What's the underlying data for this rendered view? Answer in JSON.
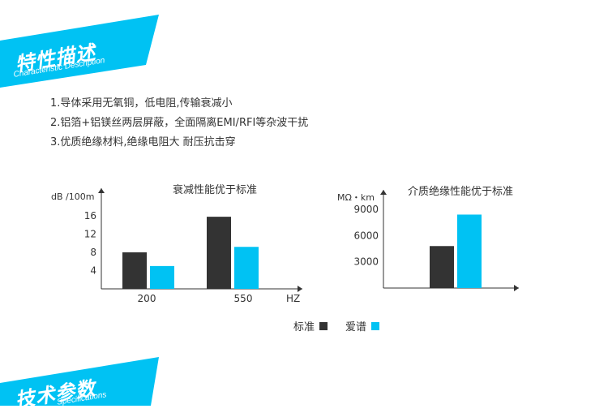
{
  "banner_top": {
    "title": "特性描述",
    "subtitle": "Characteristic Description"
  },
  "features": [
    "1.导体采用无氧铜，低电阻,传输衰减小",
    "2.铝箔+铝镁丝两层屏蔽，全面隔离EMI/RFI等杂波干扰",
    "3.优质绝缘材料,绝缘电阻大 耐压抗击穿"
  ],
  "chart_data": [
    {
      "type": "bar",
      "title": "衰减性能优于标准",
      "ylabel": "dB /100m",
      "xlabel": "HZ",
      "categories": [
        "200",
        "550"
      ],
      "yticks": [
        4,
        8,
        12,
        16
      ],
      "ylim": [
        0,
        20
      ],
      "series": [
        {
          "name": "标准",
          "color": "#333333",
          "values": [
            8,
            15.8
          ]
        },
        {
          "name": "爱谱",
          "color": "#00c2f3",
          "values": [
            5,
            9.2
          ]
        }
      ]
    },
    {
      "type": "bar",
      "title": "介质绝缘性能优于标准",
      "ylabel": "MΩ・km",
      "yticks": [
        3000,
        6000,
        9000
      ],
      "ylim": [
        0,
        10800
      ],
      "series": [
        {
          "name": "标准",
          "color": "#333333",
          "values": [
            4800
          ]
        },
        {
          "name": "爱谱",
          "color": "#00c2f3",
          "values": [
            8400
          ]
        }
      ]
    }
  ],
  "legend": [
    {
      "label": "标准",
      "color": "#333333"
    },
    {
      "label": "爱谱",
      "color": "#00c2f3"
    }
  ],
  "banner_bottom": {
    "title": "技术参数",
    "subtitle": "Specifications"
  }
}
